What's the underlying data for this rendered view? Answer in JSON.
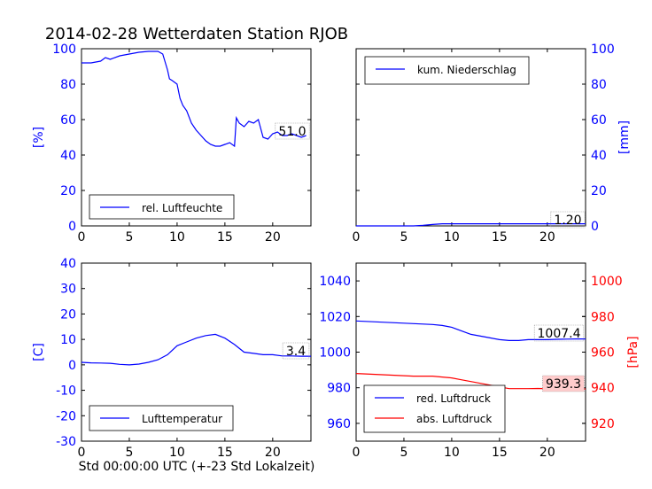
{
  "title": "2014-02-28 Wetterdaten Station RJOB",
  "xlabel": "Std 00:00:00 UTC (+-23 Std Lokalzeit)",
  "colors": {
    "blue": "#0000ff",
    "red": "#ff0000",
    "axis": "#000000",
    "label_box": "#ffcccc"
  },
  "chart_data": [
    {
      "id": "humidity",
      "type": "line",
      "xlim": [
        0,
        24
      ],
      "xticks": [
        0,
        5,
        10,
        15,
        20
      ],
      "ylim": [
        0,
        100
      ],
      "yticks": [
        0,
        20,
        40,
        60,
        80,
        100
      ],
      "ylabel": "[%]",
      "ylabel_color": "#0000ff",
      "series": [
        {
          "name": "rel. Luftfeuchte",
          "color": "#0000ff",
          "x": [
            0,
            1,
            2,
            2.5,
            3,
            4,
            5,
            6,
            7,
            8,
            8.5,
            9,
            9.2,
            9.5,
            10,
            10.3,
            10.6,
            11,
            11.5,
            12,
            12.5,
            13,
            13.5,
            14,
            14.5,
            15,
            15.5,
            16,
            16.2,
            16.5,
            17,
            17.5,
            18,
            18.5,
            19,
            19.5,
            20,
            20.5,
            21,
            21.5,
            22,
            22.5,
            23,
            23.5
          ],
          "y": [
            92,
            92,
            93,
            95,
            94,
            96,
            97,
            98,
            98.5,
            98.5,
            97,
            88,
            83,
            82,
            80,
            72,
            68,
            65,
            58,
            54,
            51,
            48,
            46,
            45,
            45,
            46,
            47,
            45,
            61,
            58,
            56,
            59,
            58,
            60,
            50,
            49,
            52,
            53,
            51,
            51,
            52,
            51,
            50,
            51
          ]
        }
      ],
      "value_label": "51.0",
      "legend_position": "lower center"
    },
    {
      "id": "precipitation",
      "type": "line",
      "xlim": [
        0,
        24
      ],
      "xticks": [
        0,
        5,
        10,
        15,
        20
      ],
      "ylim": [
        0,
        100
      ],
      "yticks": [
        0,
        20,
        40,
        60,
        80,
        100
      ],
      "ylabel": "[mm]",
      "ylabel_color": "#0000ff",
      "y_axis_side": "right",
      "series": [
        {
          "name": "kum. Niederschlag",
          "color": "#0000ff",
          "x": [
            0,
            6,
            7,
            8,
            9,
            24
          ],
          "y": [
            0,
            0,
            0.3,
            0.8,
            1.2,
            1.2
          ]
        }
      ],
      "value_label": "1.20",
      "legend_position": "upper left"
    },
    {
      "id": "temperature",
      "type": "line",
      "xlim": [
        0,
        24
      ],
      "xticks": [
        0,
        5,
        10,
        15,
        20
      ],
      "ylim": [
        -30,
        40
      ],
      "yticks": [
        -30,
        -20,
        -10,
        0,
        10,
        20,
        30,
        40
      ],
      "ylabel": "[C]",
      "ylabel_color": "#0000ff",
      "series": [
        {
          "name": "Lufttemperatur",
          "color": "#0000ff",
          "x": [
            0,
            1,
            2,
            3,
            4,
            5,
            6,
            7,
            8,
            9,
            10,
            11,
            12,
            13,
            14,
            15,
            16,
            17,
            18,
            19,
            20,
            21,
            22,
            23,
            24
          ],
          "y": [
            1,
            0.8,
            0.7,
            0.6,
            0.2,
            0,
            0.3,
            1,
            2,
            4,
            7.5,
            9,
            10.5,
            11.5,
            12,
            10.5,
            8,
            5,
            4.5,
            4,
            4,
            3.5,
            3.5,
            3.4,
            3.4
          ]
        }
      ],
      "value_label": "3.4",
      "legend_position": "lower center"
    },
    {
      "id": "pressure",
      "type": "line",
      "xlim": [
        0,
        24
      ],
      "xticks": [
        0,
        5,
        10,
        15,
        20
      ],
      "ylim": [
        950,
        1050
      ],
      "yticks": [
        960,
        980,
        1000,
        1020,
        1040
      ],
      "ylabel_color": "#0000ff",
      "ylim_right": [
        910,
        1010
      ],
      "yticks_right": [
        920,
        940,
        960,
        980,
        1000
      ],
      "ylabel_right": "[hPa]",
      "ylabel_right_color": "#ff0000",
      "series": [
        {
          "name": "red. Luftdruck",
          "color": "#0000ff",
          "axis": "left",
          "x": [
            0,
            2,
            4,
            6,
            8,
            9,
            10,
            11,
            12,
            13,
            14,
            15,
            16,
            17,
            18,
            19,
            20,
            21,
            22,
            23,
            24
          ],
          "y": [
            1017.5,
            1017,
            1016.5,
            1016,
            1015.5,
            1015,
            1014,
            1012,
            1010,
            1009,
            1008,
            1007,
            1006.5,
            1006.5,
            1007,
            1007,
            1007,
            1007.2,
            1007.3,
            1007.4,
            1007.4
          ]
        },
        {
          "name": "abs. Luftdruck",
          "color": "#ff0000",
          "axis": "right",
          "x": [
            0,
            2,
            4,
            6,
            8,
            9,
            10,
            11,
            12,
            13,
            14,
            15,
            16,
            17,
            18,
            19,
            20,
            21,
            22,
            23,
            24
          ],
          "y": [
            948,
            947.5,
            947,
            946.5,
            946.5,
            946,
            945.5,
            944.5,
            943.5,
            942.5,
            941.5,
            940.5,
            939.5,
            939.5,
            939.5,
            939.6,
            939.5,
            939.4,
            939.3,
            939.3,
            939.3
          ]
        }
      ],
      "value_labels": [
        "1007.4",
        "939.3"
      ],
      "legend_position": "lower left"
    }
  ]
}
